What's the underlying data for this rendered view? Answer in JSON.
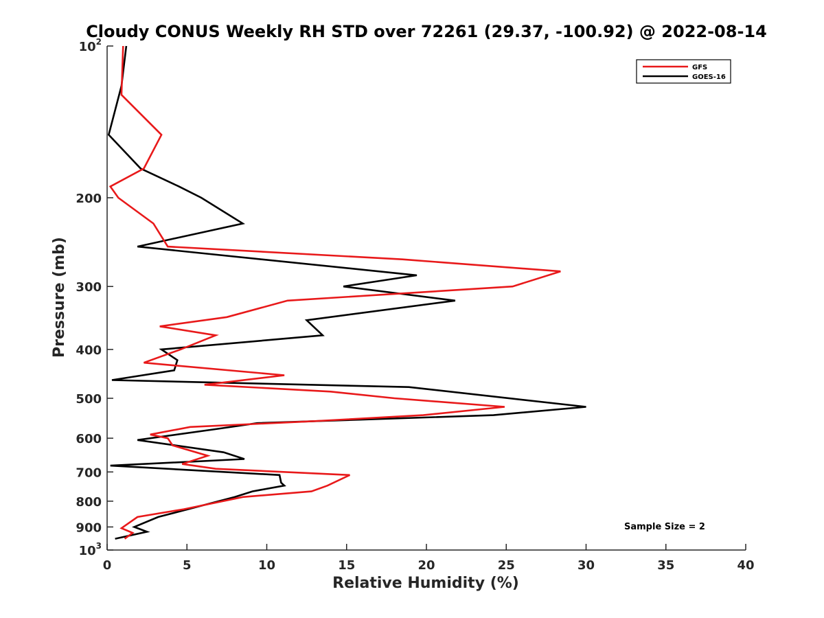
{
  "chart_data": {
    "type": "line",
    "title": "Cloudy CONUS Weekly RH STD over 72261 (29.37, -100.92) @ 2022-08-14",
    "xlabel": "Relative Humidity (%)",
    "ylabel": "Pressure (mb)",
    "xlim": [
      0,
      40
    ],
    "ylim": [
      100,
      1000
    ],
    "y_scale": "log",
    "y_reversed": true,
    "x_ticks": [
      0,
      5,
      10,
      15,
      20,
      25,
      30,
      35,
      40
    ],
    "y_ticks": [
      {
        "value": 100,
        "base": "10",
        "exp": "2"
      },
      {
        "value": 200,
        "label": "200"
      },
      {
        "value": 300,
        "label": "300"
      },
      {
        "value": 400,
        "label": "400"
      },
      {
        "value": 500,
        "label": "500"
      },
      {
        "value": 600,
        "label": "600"
      },
      {
        "value": 700,
        "label": "700"
      },
      {
        "value": 800,
        "label": "800"
      },
      {
        "value": 900,
        "label": "900"
      },
      {
        "value": 1000,
        "base": "10",
        "exp": "3"
      }
    ],
    "grid": false,
    "legend_position": "top-right",
    "annotation": "Sample Size = 2",
    "series": [
      {
        "name": "GFS",
        "color": "#e8191a",
        "points": [
          [
            1.0,
            100
          ],
          [
            0.9,
            125
          ],
          [
            3.4,
            150
          ],
          [
            2.3,
            175
          ],
          [
            0.2,
            190
          ],
          [
            0.7,
            200
          ],
          [
            2.9,
            225
          ],
          [
            3.8,
            250
          ],
          [
            18.5,
            265
          ],
          [
            28.4,
            280
          ],
          [
            25.4,
            300
          ],
          [
            11.3,
            320
          ],
          [
            7.5,
            345
          ],
          [
            3.3,
            360
          ],
          [
            6.8,
            375
          ],
          [
            4.6,
            400
          ],
          [
            2.3,
            425
          ],
          [
            11.1,
            450
          ],
          [
            6.1,
            470
          ],
          [
            14.0,
            485
          ],
          [
            18.0,
            500
          ],
          [
            24.9,
            520
          ],
          [
            19.8,
            540
          ],
          [
            13.0,
            555
          ],
          [
            5.2,
            570
          ],
          [
            2.7,
            590
          ],
          [
            3.8,
            600
          ],
          [
            4.1,
            620
          ],
          [
            6.3,
            650
          ],
          [
            4.7,
            675
          ],
          [
            6.8,
            690
          ],
          [
            15.2,
            710
          ],
          [
            13.8,
            745
          ],
          [
            12.8,
            765
          ],
          [
            8.5,
            785
          ],
          [
            4.8,
            830
          ],
          [
            1.9,
            860
          ],
          [
            0.9,
            905
          ],
          [
            1.6,
            925
          ],
          [
            1.1,
            950
          ]
        ]
      },
      {
        "name": "GOES-16",
        "color": "#000000",
        "points": [
          [
            1.2,
            100
          ],
          [
            0.9,
            120
          ],
          [
            0.1,
            150
          ],
          [
            2.1,
            175
          ],
          [
            4.5,
            190
          ],
          [
            5.9,
            200
          ],
          [
            8.5,
            225
          ],
          [
            1.9,
            250
          ],
          [
            19.4,
            285
          ],
          [
            14.8,
            300
          ],
          [
            21.8,
            320
          ],
          [
            12.5,
            350
          ],
          [
            13.5,
            375
          ],
          [
            3.4,
            400
          ],
          [
            4.4,
            420
          ],
          [
            4.2,
            440
          ],
          [
            0.3,
            460
          ],
          [
            18.9,
            475
          ],
          [
            30.0,
            520
          ],
          [
            24.2,
            540
          ],
          [
            9.4,
            560
          ],
          [
            6.9,
            575
          ],
          [
            1.9,
            605
          ],
          [
            7.3,
            640
          ],
          [
            8.6,
            660
          ],
          [
            0.2,
            680
          ],
          [
            10.8,
            710
          ],
          [
            10.9,
            735
          ],
          [
            11.1,
            745
          ],
          [
            9.1,
            765
          ],
          [
            8.0,
            785
          ],
          [
            3.2,
            860
          ],
          [
            1.7,
            900
          ],
          [
            2.5,
            920
          ],
          [
            0.5,
            950
          ]
        ]
      }
    ]
  }
}
